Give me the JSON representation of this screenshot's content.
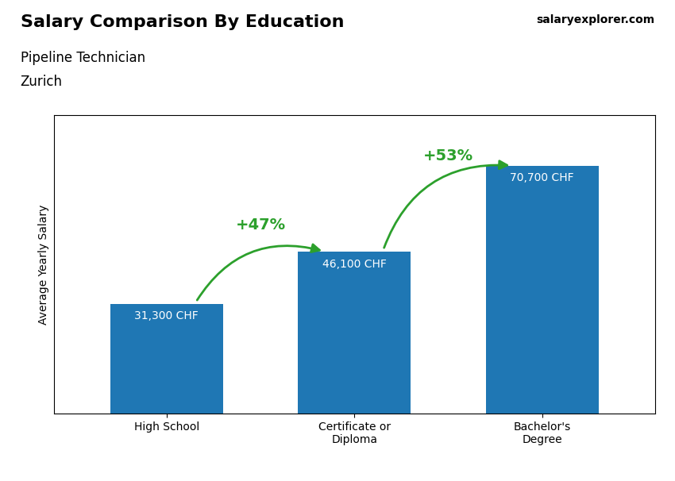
{
  "chart_data": {
    "type": "bar",
    "title": "Salary Comparison By Education",
    "subtitle": "Pipeline Technician",
    "location": "Zurich",
    "source": "salaryexplorer.com",
    "ylabel": "Average Yearly Salary",
    "categories": [
      "High School",
      "Certificate or\nDiploma",
      "Bachelor's\nDegree"
    ],
    "values": [
      31300,
      46100,
      70700
    ],
    "value_labels": [
      "31,300 CHF",
      "46,100 CHF",
      "70,700 CHF"
    ],
    "data_labels": true,
    "annotations": [
      {
        "text": "+47%",
        "from": "High School",
        "to": "Certificate or\nDiploma"
      },
      {
        "text": "+53%",
        "from": "Certificate or\nDiploma",
        "to": "Bachelor's\nDegree"
      }
    ],
    "ylim": [
      0,
      85000
    ],
    "yticks": [],
    "tick_labels": "x",
    "grid": false
  }
}
